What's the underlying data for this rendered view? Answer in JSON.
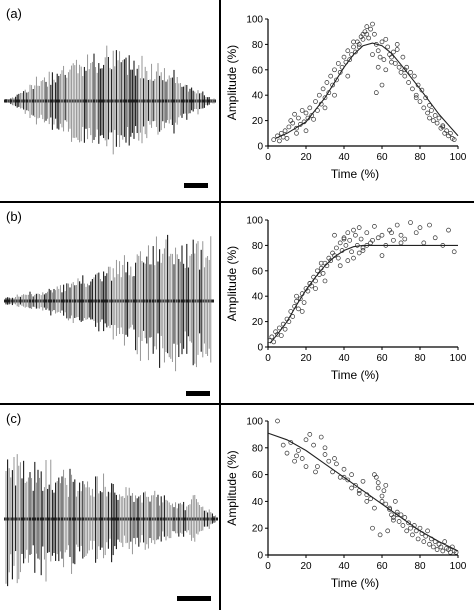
{
  "panels": [
    {
      "label": "(a)"
    },
    {
      "label": "(b)"
    },
    {
      "label": "(c)"
    }
  ],
  "chart_data": [
    {
      "type": "scatter",
      "panel": "(a)",
      "xlabel": "Time (%)",
      "ylabel": "Amplitude (%)",
      "xlim": [
        0,
        100
      ],
      "ylim": [
        0,
        100
      ],
      "xticks": [
        "0",
        "20",
        "40",
        "60",
        "80",
        "100"
      ],
      "yticks": [
        "0",
        "20",
        "40",
        "60",
        "80",
        "100"
      ],
      "grid": false,
      "fit_curve": {
        "x": [
          4,
          10,
          20,
          30,
          40,
          45,
          50,
          55,
          60,
          65,
          70,
          80,
          90,
          100
        ],
        "y": [
          6,
          10,
          19,
          38,
          62,
          72,
          79,
          81,
          79,
          73,
          64,
          45,
          25,
          8
        ]
      },
      "points": {
        "x": [
          3,
          5,
          6,
          7,
          8,
          9,
          10,
          11,
          12,
          13,
          14,
          15,
          16,
          17,
          18,
          19,
          20,
          21,
          22,
          23,
          24,
          25,
          26,
          27,
          28,
          29,
          30,
          31,
          32,
          33,
          34,
          35,
          36,
          37,
          38,
          39,
          40,
          41,
          42,
          43,
          44,
          45,
          46,
          47,
          48,
          49,
          50,
          51,
          52,
          53,
          54,
          55,
          56,
          57,
          58,
          59,
          60,
          61,
          62,
          63,
          64,
          65,
          66,
          67,
          68,
          69,
          70,
          71,
          72,
          73,
          74,
          75,
          76,
          77,
          78,
          79,
          80,
          81,
          82,
          83,
          84,
          85,
          86,
          87,
          88,
          89,
          90,
          91,
          92,
          93,
          94,
          95,
          96,
          97,
          98,
          15,
          20,
          30,
          35,
          42,
          48,
          52,
          55,
          58,
          62,
          68,
          72,
          78,
          85,
          92,
          57,
          60,
          50,
          45,
          65
        ],
        "y": [
          5,
          8,
          4,
          10,
          7,
          12,
          6,
          15,
          20,
          18,
          25,
          14,
          22,
          17,
          28,
          19,
          26,
          22,
          30,
          24,
          21,
          35,
          28,
          40,
          33,
          45,
          38,
          50,
          42,
          55,
          48,
          60,
          52,
          65,
          58,
          62,
          70,
          66,
          75,
          68,
          72,
          78,
          74,
          82,
          80,
          86,
          84,
          90,
          88,
          85,
          92,
          96,
          88,
          80,
          75,
          70,
          82,
          68,
          60,
          78,
          72,
          66,
          74,
          65,
          80,
          62,
          58,
          70,
          55,
          62,
          50,
          58,
          45,
          55,
          40,
          48,
          35,
          44,
          30,
          38,
          26,
          32,
          28,
          20,
          24,
          18,
          22,
          14,
          16,
          10,
          12,
          8,
          10,
          6,
          5,
          10,
          12,
          30,
          40,
          55,
          78,
          94,
          72,
          62,
          84,
          76,
          60,
          38,
          22,
          15,
          42,
          48,
          88,
          82,
          70
        ]
      }
    },
    {
      "type": "scatter",
      "panel": "(b)",
      "xlabel": "Time (%)",
      "ylabel": "Amplitude (%)",
      "xlim": [
        0,
        100
      ],
      "ylim": [
        0,
        100
      ],
      "xticks": [
        "0",
        "20",
        "40",
        "60",
        "80",
        "100"
      ],
      "yticks": [
        "0",
        "20",
        "40",
        "60",
        "80",
        "100"
      ],
      "grid": false,
      "fit_curve": {
        "x": [
          1,
          5,
          10,
          15,
          20,
          25,
          30,
          35,
          40,
          45,
          50,
          60,
          70,
          80,
          90,
          100
        ],
        "y": [
          3,
          10,
          20,
          33,
          45,
          55,
          64,
          71,
          76,
          79,
          80,
          80,
          80,
          80,
          80,
          80
        ]
      },
      "points": {
        "x": [
          1,
          2,
          3,
          4,
          5,
          6,
          7,
          8,
          9,
          10,
          11,
          12,
          13,
          14,
          15,
          16,
          17,
          18,
          19,
          20,
          21,
          22,
          23,
          24,
          25,
          26,
          27,
          28,
          29,
          30,
          31,
          32,
          33,
          34,
          35,
          36,
          37,
          38,
          39,
          40,
          41,
          42,
          43,
          44,
          45,
          46,
          47,
          48,
          49,
          50,
          52,
          54,
          56,
          58,
          60,
          62,
          64,
          66,
          68,
          70,
          72,
          75,
          78,
          80,
          82,
          85,
          88,
          92,
          95,
          98,
          15,
          22,
          28,
          35,
          40,
          45,
          50,
          55,
          60,
          65,
          70,
          38,
          42,
          48,
          52,
          30,
          25,
          18
        ],
        "y": [
          5,
          8,
          4,
          12,
          10,
          15,
          9,
          18,
          14,
          22,
          20,
          28,
          24,
          32,
          36,
          30,
          38,
          42,
          35,
          46,
          44,
          50,
          48,
          55,
          52,
          60,
          57,
          62,
          58,
          66,
          64,
          70,
          68,
          74,
          72,
          78,
          70,
          82,
          76,
          86,
          80,
          90,
          84,
          75,
          92,
          88,
          80,
          94,
          85,
          78,
          90,
          82,
          95,
          86,
          88,
          80,
          92,
          84,
          96,
          88,
          85,
          98,
          90,
          94,
          82,
          96,
          86,
          80,
          92,
          75,
          40,
          50,
          66,
          88,
          85,
          70,
          76,
          84,
          72,
          90,
          82,
          64,
          68,
          74,
          80,
          52,
          46,
          28
        ]
      }
    },
    {
      "type": "scatter",
      "panel": "(c)",
      "xlabel": "Time (%)",
      "ylabel": "Amplitude (%)",
      "xlim": [
        0,
        100
      ],
      "ylim": [
        0,
        100
      ],
      "xticks": [
        "0",
        "20",
        "40",
        "60",
        "80",
        "100"
      ],
      "yticks": [
        "0",
        "20",
        "40",
        "60",
        "80",
        "100"
      ],
      "grid": false,
      "fit_curve": {
        "x": [
          0,
          10,
          20,
          30,
          40,
          50,
          60,
          70,
          80,
          90,
          100
        ],
        "y": [
          91,
          86,
          78,
          68,
          58,
          48,
          38,
          28,
          18,
          10,
          3
        ]
      },
      "points": {
        "x": [
          5,
          8,
          10,
          12,
          14,
          16,
          18,
          20,
          22,
          24,
          26,
          28,
          30,
          32,
          34,
          36,
          38,
          40,
          42,
          44,
          46,
          48,
          50,
          52,
          54,
          55,
          56,
          57,
          58,
          59,
          60,
          61,
          62,
          63,
          64,
          65,
          66,
          67,
          68,
          69,
          70,
          71,
          72,
          73,
          74,
          75,
          76,
          77,
          78,
          79,
          80,
          81,
          82,
          83,
          84,
          85,
          86,
          87,
          88,
          89,
          90,
          91,
          92,
          93,
          94,
          95,
          96,
          97,
          98,
          99,
          40,
          44,
          48,
          52,
          56,
          58,
          60,
          62,
          64,
          66,
          68,
          30,
          35,
          25,
          20,
          15
        ],
        "y": [
          100,
          82,
          76,
          84,
          70,
          78,
          72,
          86,
          90,
          82,
          66,
          88,
          75,
          70,
          62,
          68,
          58,
          64,
          56,
          60,
          52,
          48,
          55,
          45,
          42,
          20,
          35,
          58,
          50,
          15,
          40,
          48,
          52,
          18,
          35,
          30,
          28,
          40,
          32,
          25,
          30,
          22,
          28,
          18,
          24,
          20,
          15,
          22,
          18,
          12,
          20,
          16,
          10,
          14,
          18,
          8,
          12,
          6,
          10,
          4,
          8,
          6,
          3,
          10,
          5,
          4,
          2,
          6,
          3,
          2,
          58,
          50,
          46,
          40,
          60,
          54,
          44,
          38,
          34,
          26,
          30,
          80,
          72,
          62,
          66,
          74
        ]
      }
    }
  ]
}
